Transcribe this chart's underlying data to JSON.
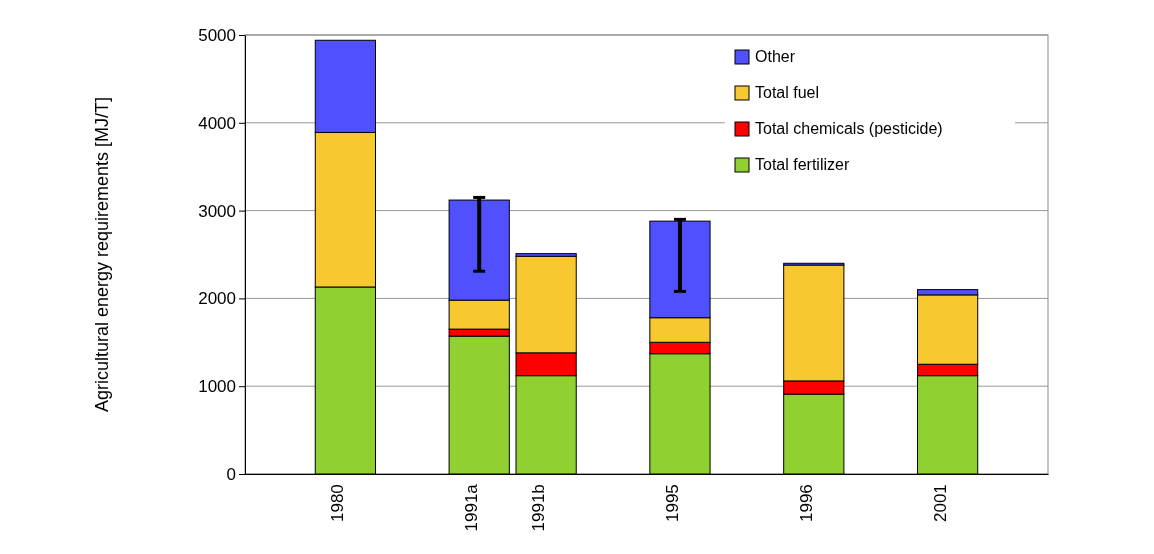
{
  "chart_data": {
    "type": "bar",
    "ylabel": "Agricultural energy requirements [MJ/T]",
    "stacked": true,
    "categories": [
      null,
      "1980",
      null,
      "1991a",
      "1991b",
      null,
      "1995",
      null,
      "1996",
      null,
      "2001",
      null
    ],
    "series": [
      {
        "name": "Total fertilizer",
        "color": "#90d030",
        "values": [
          null,
          2130,
          null,
          1570,
          1120,
          null,
          1370,
          null,
          910,
          null,
          1120,
          null
        ]
      },
      {
        "name": "Total chemicals (pesticide)",
        "color": "#ff0000",
        "values": [
          null,
          null,
          null,
          80,
          260,
          null,
          130,
          null,
          150,
          null,
          130,
          null
        ]
      },
      {
        "name": "Total fuel",
        "color": "#f8c830",
        "values": [
          null,
          1760,
          null,
          330,
          1100,
          null,
          280,
          null,
          1320,
          null,
          790,
          null
        ]
      },
      {
        "name": "Other",
        "color": "#5050ff",
        "values": [
          null,
          1050,
          null,
          1140,
          30,
          null,
          1100,
          null,
          20,
          null,
          60,
          null
        ],
        "errors": [
          null,
          null,
          null,
          [
            2310,
            3150
          ],
          null,
          null,
          [
            2080,
            2900
          ],
          null,
          null,
          null,
          null,
          null
        ]
      }
    ],
    "ylim": [
      0,
      5000
    ],
    "yticks": [
      0,
      1000,
      2000,
      3000,
      4000,
      5000
    ],
    "grid": "y",
    "legend": "top right"
  }
}
